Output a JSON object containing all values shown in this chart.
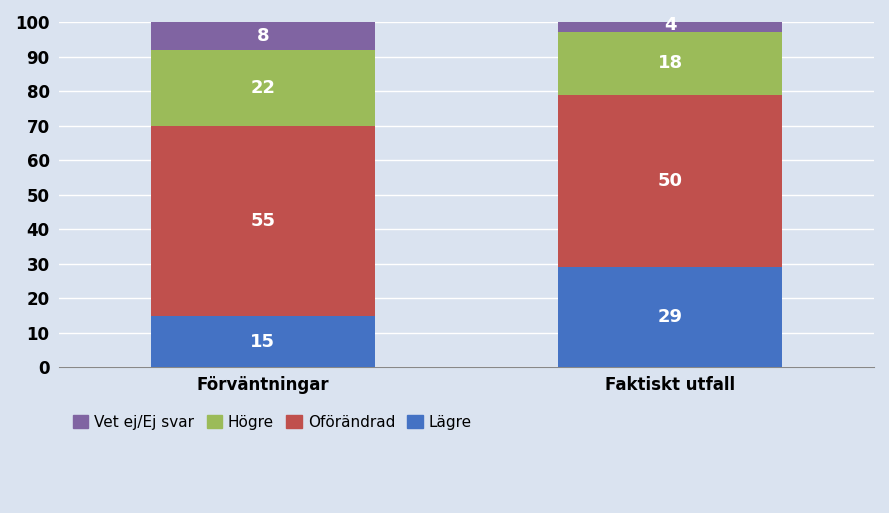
{
  "categories": [
    "Förväntningar",
    "Faktiskt utfall"
  ],
  "series": {
    "Lägre": [
      15,
      29
    ],
    "Oförändrad": [
      55,
      50
    ],
    "Högre": [
      22,
      18
    ],
    "Vet ej/Ej svar": [
      8,
      4
    ]
  },
  "colors": {
    "Lägre": "#4472C4",
    "Oförändrad": "#C0504D",
    "Högre": "#9BBB59",
    "Vet ej/Ej svar": "#8064A2"
  },
  "legend_order": [
    "Vet ej/Ej svar",
    "Högre",
    "Oförändrad",
    "Lägre"
  ],
  "stack_order": [
    "Lägre",
    "Oförändrad",
    "Högre",
    "Vet ej/Ej svar"
  ],
  "ylim": [
    0,
    100
  ],
  "yticks": [
    0,
    10,
    20,
    30,
    40,
    50,
    60,
    70,
    80,
    90,
    100
  ],
  "bar_width": 0.55,
  "bar_positions": [
    0.25,
    0.75
  ],
  "label_fontsize": 13,
  "tick_fontsize": 12,
  "legend_fontsize": 11,
  "text_color": "#FFFFFF",
  "background_color": "#DAE3F0",
  "plot_bg_color": "#DAE3F0",
  "fig_bg_color": "#DAE3F0",
  "grid_color": "#FFFFFF",
  "axis_label_fontsize": 12,
  "ytick_color": "#000000",
  "spine_color": "#888888"
}
